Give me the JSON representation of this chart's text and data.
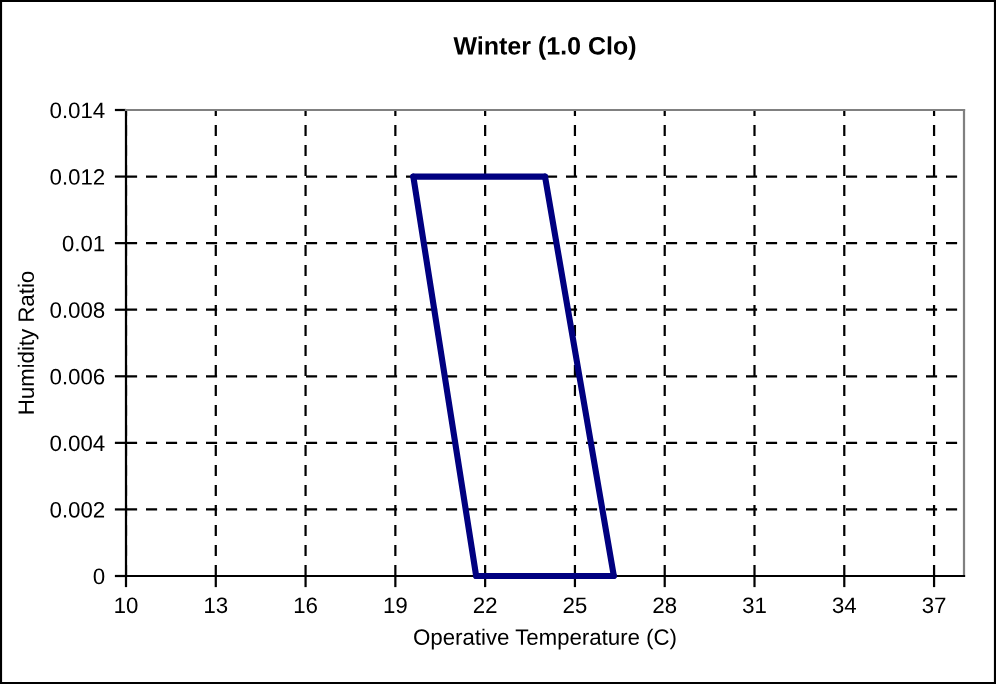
{
  "chart_data": {
    "type": "line",
    "title": "Winter (1.0 Clo)",
    "xlabel": "Operative Temperature (C)",
    "ylabel": "Humidity Ratio",
    "series": [
      {
        "color": "#000080",
        "x": [
          19.6,
          24.0
        ],
        "values": [
          0.012,
          0.012
        ]
      },
      {
        "color": "#000080",
        "x": [
          24.0,
          26.3
        ],
        "values": [
          0.012,
          0
        ]
      },
      {
        "color": "#000080",
        "x": [
          21.7,
          26.3
        ],
        "values": [
          0,
          0
        ]
      },
      {
        "color": "#000080",
        "x": [
          19.6,
          21.7
        ],
        "values": [
          0.012,
          0
        ]
      }
    ],
    "xlim": [
      10,
      38
    ],
    "xticks": [
      10,
      13,
      16,
      19,
      22,
      25,
      28,
      31,
      34,
      37
    ],
    "ylim": [
      0,
      0.014
    ],
    "yticks": [
      0,
      0.002,
      0.004,
      0.006,
      0.008,
      0.01,
      0.012,
      0.014
    ],
    "grid": true,
    "marker": "none",
    "line_style": "solid"
  }
}
